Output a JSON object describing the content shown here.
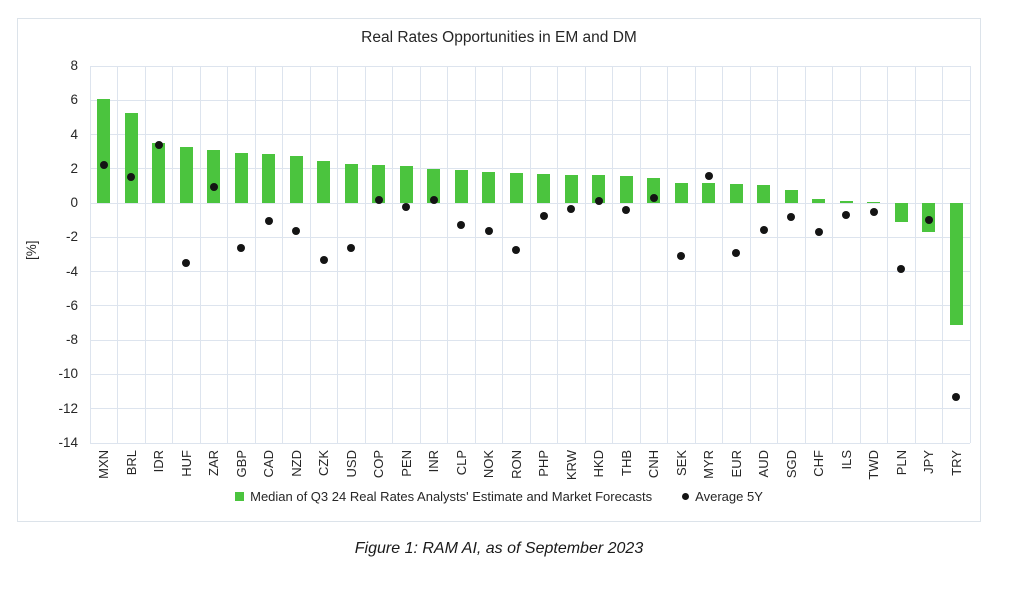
{
  "chart_data": {
    "type": "bar",
    "title": "Real Rates Opportunities in EM and DM",
    "xlabel": "",
    "ylabel": "[%]",
    "ylim": [
      -14,
      8
    ],
    "ytick_step": 2,
    "y_ticks": [
      8,
      6,
      4,
      2,
      0,
      -2,
      -4,
      -6,
      -8,
      -10,
      -12,
      -14
    ],
    "grid": true,
    "legend_position": "bottom",
    "categories": [
      "MXN",
      "BRL",
      "IDR",
      "HUF",
      "ZAR",
      "GBP",
      "CAD",
      "NZD",
      "CZK",
      "USD",
      "COP",
      "PEN",
      "INR",
      "CLP",
      "NOK",
      "RON",
      "PHP",
      "KRW",
      "HKD",
      "THB",
      "CNH",
      "SEK",
      "MYR",
      "EUR",
      "AUD",
      "SGD",
      "CHF",
      "ILS",
      "TWD",
      "PLN",
      "JPY",
      "TRY"
    ],
    "series": [
      {
        "name": "Median of Q3 24 Real Rates Analysts' Estimate and Market Forecasts",
        "type": "bar",
        "color": "#4bc43e",
        "values": [
          6.05,
          5.25,
          3.5,
          3.25,
          3.1,
          2.95,
          2.85,
          2.75,
          2.45,
          2.3,
          2.25,
          2.15,
          2.0,
          1.95,
          1.8,
          1.75,
          1.7,
          1.65,
          1.65,
          1.6,
          1.45,
          1.2,
          1.15,
          1.1,
          1.05,
          0.75,
          0.25,
          0.1,
          0.05,
          -1.1,
          -1.7,
          -7.1
        ]
      },
      {
        "name": "Average 5Y",
        "type": "scatter",
        "color": "#141414",
        "values": [
          2.25,
          1.55,
          3.4,
          -3.5,
          0.95,
          -2.6,
          -1.05,
          -1.6,
          -3.3,
          -2.6,
          0.2,
          -0.2,
          0.2,
          -1.3,
          -1.6,
          -2.75,
          -0.75,
          -0.35,
          0.1,
          -0.4,
          0.3,
          -3.1,
          1.6,
          -2.9,
          -1.55,
          -0.8,
          -1.7,
          -0.7,
          -0.5,
          -3.85,
          -1.0,
          -11.3
        ]
      }
    ]
  },
  "caption": "Figure 1: RAM AI, as of September 2023",
  "colors": {
    "background": "#ffffff",
    "bar": "#4bc43e",
    "dot": "#141414",
    "gridline": "#dde4ee",
    "frame_border": "#dce3ea",
    "text": "#262626"
  }
}
